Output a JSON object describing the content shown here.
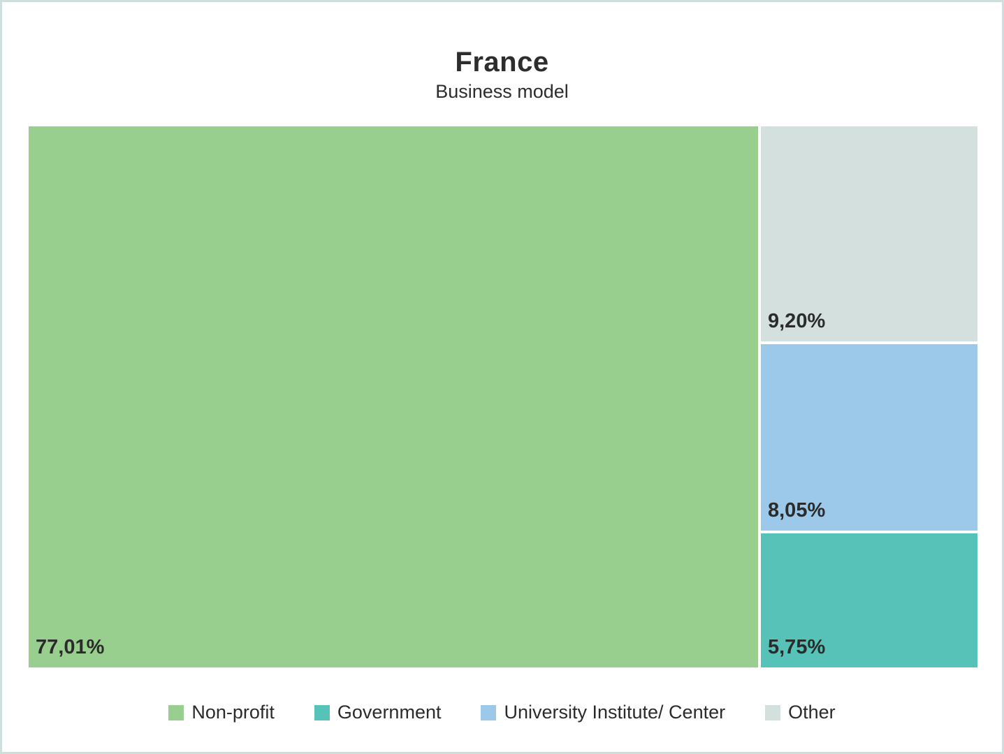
{
  "title": "France",
  "subtitle": "Business model",
  "colors": {
    "non_profit": "#98cf8e",
    "government": "#57c3b8",
    "university": "#9cc9e9",
    "other": "#d3e0dd",
    "page_border": "#cedfdd",
    "text": "#2b2b2b"
  },
  "chart_data": {
    "type": "treemap",
    "title": "France",
    "subtitle": "Business model",
    "series": [
      {
        "name": "Non-profit",
        "value": 77.01,
        "label": "77,01%",
        "color": "#98cf8e"
      },
      {
        "name": "Other",
        "value": 9.2,
        "label": "9,20%",
        "color": "#d3e0dd"
      },
      {
        "name": "University Institute/ Center",
        "value": 8.05,
        "label": "8,05%",
        "color": "#9cc9e9"
      },
      {
        "name": "Government",
        "value": 5.75,
        "label": "5,75%",
        "color": "#57c3b8"
      }
    ],
    "legend_position": "bottom",
    "value_format": "percent-comma-decimal"
  },
  "legend": {
    "items": [
      {
        "label": "Non-profit",
        "color": "#98cf8e"
      },
      {
        "label": "Government",
        "color": "#57c3b8"
      },
      {
        "label": "University Institute/ Center",
        "color": "#9cc9e9"
      },
      {
        "label": "Other",
        "color": "#d3e0dd"
      }
    ]
  }
}
